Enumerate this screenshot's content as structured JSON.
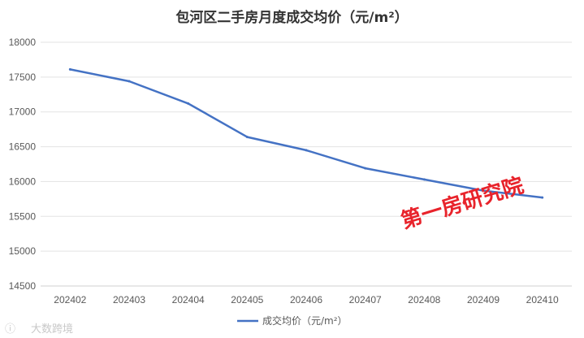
{
  "chart_data": {
    "type": "line",
    "title": "包河区二手房月度成交均价（元/m²）",
    "xlabel": "",
    "ylabel": "",
    "categories": [
      "202402",
      "202403",
      "202404",
      "202405",
      "202406",
      "202407",
      "202408",
      "202409",
      "202410"
    ],
    "series": [
      {
        "name": "成交均价（元/m²）",
        "color": "#4472c4",
        "values": [
          17610,
          17440,
          17120,
          16640,
          16450,
          16190,
          16030,
          15870,
          15770
        ]
      }
    ],
    "ylim": [
      14500,
      18000
    ],
    "yticks": [
      14500,
      15000,
      15500,
      16000,
      16500,
      17000,
      17500,
      18000
    ],
    "grid": true,
    "legend_position": "bottom"
  },
  "watermark": {
    "brand_text": "第一房研究院",
    "source_text": "大数跨境",
    "color": "#e8232b"
  }
}
